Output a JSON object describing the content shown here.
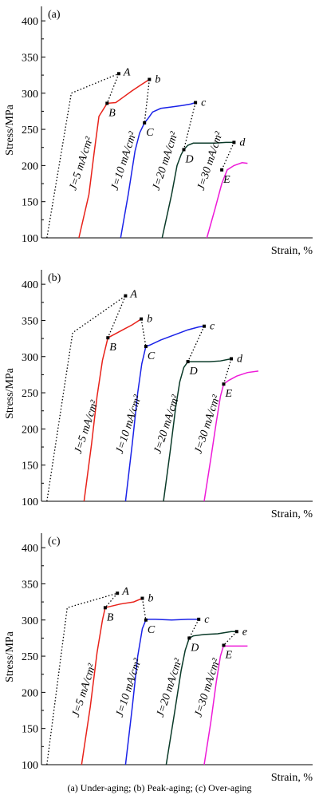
{
  "caption": "(a)  Under-aging; (b) Peak-aging; (c) Over-aging",
  "colors": {
    "J5": "#e8221a",
    "J10": "#1a22e8",
    "J20": "#0a3a28",
    "J30": "#ee1ad8",
    "dotted": "#000000"
  },
  "chart_data": [
    {
      "panel": "(a)",
      "type": "line",
      "xlabel": "Strain, %",
      "ylabel": "Stress/MPa",
      "ylim": [
        100,
        420
      ],
      "yticks": [
        100,
        150,
        200,
        250,
        300,
        350,
        400
      ],
      "xlim": [
        0,
        1
      ],
      "envelope": [
        [
          0.02,
          100
        ],
        [
          0.11,
          300
        ],
        [
          0.285,
          327
        ]
      ],
      "series": [
        {
          "name": "J=5 mA/cm²",
          "color_key": "J5",
          "x": [
            0.138,
            0.175,
            0.195,
            0.212,
            0.242,
            0.274,
            0.3,
            0.333,
            0.365,
            0.398
          ],
          "y": [
            100,
            160,
            220,
            268,
            286,
            287,
            294,
            303,
            311,
            319
          ],
          "point": {
            "label": "B",
            "x": 0.242,
            "y": 286
          },
          "end": {
            "label": "b",
            "x": 0.398,
            "y": 319
          }
        },
        {
          "name": "J=10 mA/cm²",
          "color_key": "J10",
          "x": [
            0.292,
            0.32,
            0.345,
            0.362,
            0.38,
            0.395,
            0.41,
            0.44,
            0.48,
            0.52,
            0.55,
            0.568
          ],
          "y": [
            100,
            160,
            220,
            245,
            259,
            266,
            274,
            279,
            281,
            283,
            285,
            287
          ],
          "point": {
            "label": "C",
            "x": 0.38,
            "y": 259
          },
          "end": {
            "label": "c",
            "x": 0.568,
            "y": 287
          }
        },
        {
          "name": "J=20 mA/cm²",
          "color_key": "J20",
          "x": [
            0.445,
            0.48,
            0.5,
            0.515,
            0.525,
            0.54,
            0.56,
            0.6,
            0.64,
            0.68,
            0.71
          ],
          "y": [
            100,
            160,
            200,
            215,
            222,
            228,
            231,
            231,
            231,
            232,
            232
          ],
          "point": {
            "label": "D",
            "x": 0.525,
            "y": 222
          },
          "end": {
            "label": "d",
            "x": 0.71,
            "y": 232
          }
        },
        {
          "name": "J=30 mA/cm²",
          "color_key": "J30",
          "x": [
            0.61,
            0.64,
            0.665,
            0.685,
            0.71,
            0.74,
            0.76
          ],
          "y": [
            100,
            140,
            175,
            194,
            200,
            204,
            203
          ],
          "point": {
            "label": "E",
            "x": 0.665,
            "y": 194
          }
        }
      ],
      "ultimate": [
        {
          "label": "A",
          "x": 0.285,
          "y": 327,
          "to_y": 286,
          "to_x": 0.242
        },
        {
          "to_x": 0.38,
          "to_y": 259,
          "x": 0.398,
          "y": 319
        },
        {
          "to_x": 0.525,
          "to_y": 222,
          "x": 0.568,
          "y": 287
        },
        {
          "to_x": 0.665,
          "to_y": 194,
          "x": 0.71,
          "y": 232
        }
      ]
    },
    {
      "panel": "(b)",
      "type": "line",
      "xlabel": "Strain, %",
      "ylabel": "Stress/MPa",
      "ylim": [
        100,
        420
      ],
      "yticks": [
        100,
        150,
        200,
        250,
        300,
        350,
        400
      ],
      "xlim": [
        0,
        1
      ],
      "envelope": [
        [
          0.02,
          100
        ],
        [
          0.115,
          333
        ],
        [
          0.31,
          384
        ]
      ],
      "series": [
        {
          "name": "J=5 mA/cm²",
          "color_key": "J5",
          "x": [
            0.157,
            0.185,
            0.205,
            0.225,
            0.245,
            0.265,
            0.3,
            0.335,
            0.368
          ],
          "y": [
            100,
            180,
            245,
            295,
            326,
            330,
            337,
            344,
            352
          ],
          "point": {
            "label": "B",
            "x": 0.245,
            "y": 326
          },
          "end": {
            "label": "b",
            "x": 0.368,
            "y": 352
          }
        },
        {
          "name": "J=10 mA/cm²",
          "color_key": "J10",
          "x": [
            0.31,
            0.335,
            0.355,
            0.37,
            0.385,
            0.4,
            0.44,
            0.49,
            0.54,
            0.58,
            0.6
          ],
          "y": [
            100,
            180,
            250,
            290,
            314,
            316,
            323,
            330,
            337,
            341,
            342
          ],
          "point": {
            "label": "C",
            "x": 0.385,
            "y": 314
          },
          "end": {
            "label": "c",
            "x": 0.6,
            "y": 342
          }
        },
        {
          "name": "J=20 mA/cm²",
          "color_key": "J20",
          "x": [
            0.45,
            0.475,
            0.495,
            0.51,
            0.525,
            0.54,
            0.58,
            0.62,
            0.66,
            0.7
          ],
          "y": [
            100,
            170,
            230,
            265,
            285,
            293,
            293,
            293,
            294,
            297
          ],
          "point": {
            "label": "D",
            "x": 0.54,
            "y": 293
          },
          "end": {
            "label": "d",
            "x": 0.7,
            "y": 297
          }
        },
        {
          "name": "J=30 mA/cm²",
          "color_key": "J30",
          "x": [
            0.6,
            0.625,
            0.645,
            0.66,
            0.672,
            0.69,
            0.72,
            0.76,
            0.8
          ],
          "y": [
            100,
            160,
            210,
            245,
            262,
            267,
            273,
            278,
            280
          ],
          "point": {
            "label": "E",
            "x": 0.672,
            "y": 262
          }
        }
      ],
      "ultimate": [
        {
          "label": "A",
          "x": 0.31,
          "y": 384,
          "to_x": 0.245,
          "to_y": 326
        },
        {
          "x": 0.368,
          "y": 352,
          "to_x": 0.385,
          "to_y": 314
        },
        {
          "x": 0.6,
          "y": 342,
          "to_x": 0.54,
          "to_y": 293
        },
        {
          "x": 0.7,
          "y": 297,
          "to_x": 0.672,
          "to_y": 262
        }
      ]
    },
    {
      "panel": "(c)",
      "type": "line",
      "xlabel": "Strain, %",
      "ylabel": "Stress/MPa",
      "ylim": [
        100,
        420
      ],
      "yticks": [
        100,
        150,
        200,
        250,
        300,
        350,
        400
      ],
      "xlim": [
        0,
        1
      ],
      "envelope": [
        [
          0.02,
          100
        ],
        [
          0.095,
          317
        ],
        [
          0.28,
          337
        ]
      ],
      "series": [
        {
          "name": "J=5 mA/cm²",
          "color_key": "J5",
          "x": [
            0.148,
            0.18,
            0.205,
            0.225,
            0.235,
            0.245,
            0.29,
            0.34,
            0.372
          ],
          "y": [
            100,
            180,
            255,
            300,
            317,
            318,
            322,
            325,
            330
          ],
          "point": {
            "label": "B",
            "x": 0.235,
            "y": 317
          },
          "end": {
            "label": "b",
            "x": 0.372,
            "y": 330
          }
        },
        {
          "name": "J=10 mA/cm²",
          "color_key": "J10",
          "x": [
            0.31,
            0.335,
            0.355,
            0.372,
            0.385,
            0.395,
            0.42,
            0.48,
            0.54,
            0.58
          ],
          "y": [
            100,
            180,
            250,
            288,
            300,
            301,
            301,
            300,
            301,
            301
          ],
          "point": {
            "label": "C",
            "x": 0.385,
            "y": 300
          },
          "end": {
            "label": "c",
            "x": 0.58,
            "y": 301
          }
        },
        {
          "name": "J=20 mA/cm²",
          "color_key": "J20",
          "x": [
            0.46,
            0.49,
            0.515,
            0.53,
            0.545,
            0.56,
            0.6,
            0.65,
            0.7,
            0.72
          ],
          "y": [
            100,
            170,
            230,
            258,
            275,
            278,
            280,
            281,
            284,
            284
          ],
          "point": {
            "label": "D",
            "x": 0.545,
            "y": 275
          },
          "end": {
            "label": "e",
            "x": 0.72,
            "y": 284
          }
        },
        {
          "name": "J=30 mA/cm²",
          "color_key": "J30",
          "x": [
            0.6,
            0.625,
            0.645,
            0.66,
            0.672,
            0.68,
            0.72,
            0.76
          ],
          "y": [
            100,
            160,
            215,
            250,
            265,
            264,
            264,
            264
          ],
          "point": {
            "label": "E",
            "x": 0.672,
            "y": 265
          }
        }
      ],
      "ultimate": [
        {
          "label": "A",
          "x": 0.28,
          "y": 337,
          "to_x": 0.235,
          "to_y": 317
        },
        {
          "x": 0.372,
          "y": 330,
          "to_x": 0.385,
          "to_y": 300
        },
        {
          "x": 0.58,
          "y": 301,
          "to_x": 0.545,
          "to_y": 275
        },
        {
          "x": 0.72,
          "y": 284,
          "to_x": 0.672,
          "to_y": 265
        }
      ]
    }
  ]
}
